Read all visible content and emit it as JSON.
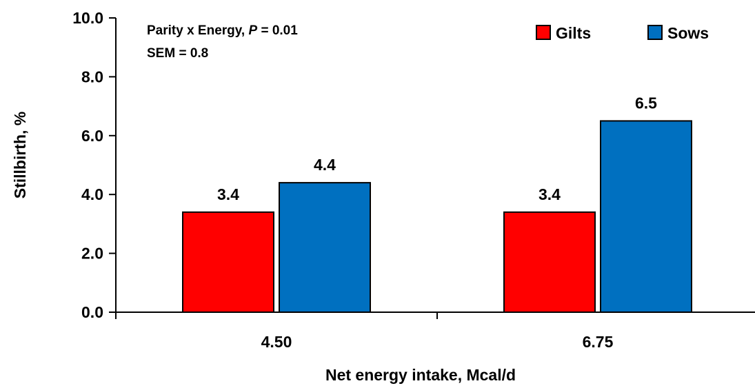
{
  "chart_data": {
    "type": "bar",
    "categories": [
      "4.50",
      "6.75"
    ],
    "series": [
      {
        "name": "Gilts",
        "values": [
          3.4,
          3.4
        ],
        "labels": [
          "3.4",
          "3.4"
        ],
        "color": "#ff0000"
      },
      {
        "name": "Sows",
        "values": [
          4.4,
          6.5
        ],
        "labels": [
          "4.4",
          "6.5"
        ],
        "color": "#0070c0"
      }
    ],
    "title": "",
    "xlabel": "Net energy intake, Mcal/d",
    "ylabel": "Stillbirth, %",
    "ylim": [
      0,
      10
    ],
    "yticks": [
      "0.0",
      "2.0",
      "4.0",
      "6.0",
      "8.0",
      "10.0"
    ],
    "grid": false,
    "legend": "top-right",
    "annotations": {
      "line1_prefix": "Parity x Energy, ",
      "line1_italic": "P",
      "line1_suffix": " = 0.01",
      "line2": "SEM = 0.8"
    }
  }
}
